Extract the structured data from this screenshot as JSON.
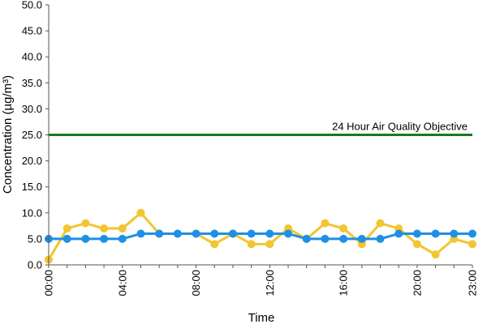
{
  "chart_data": {
    "type": "line",
    "xlabel": "Time",
    "ylabel": "Concentration (µg/m³)",
    "ylim": [
      0,
      50
    ],
    "y_tick_step": 5,
    "y_tick_decimals": 1,
    "grid": false,
    "x": [
      "00:00",
      "01:00",
      "02:00",
      "03:00",
      "04:00",
      "05:00",
      "06:00",
      "07:00",
      "08:00",
      "09:00",
      "10:00",
      "11:00",
      "12:00",
      "13:00",
      "14:00",
      "15:00",
      "16:00",
      "17:00",
      "18:00",
      "19:00",
      "20:00",
      "21:00",
      "22:00",
      "23:00"
    ],
    "x_tick_labels": [
      "00:00",
      "04:00",
      "08:00",
      "12:00",
      "16:00",
      "20:00",
      "23:00"
    ],
    "reference_line": {
      "label": "24 Hour Air Quality Objective",
      "value": 25,
      "color": "#1a7a1a"
    },
    "series": [
      {
        "color": "#f2c531",
        "values": [
          1,
          7,
          8,
          7,
          7,
          10,
          6,
          6,
          6,
          4,
          6,
          4,
          4,
          7,
          5,
          8,
          7,
          4,
          8,
          7,
          4,
          2,
          5,
          4
        ]
      },
      {
        "color": "#1e90e6",
        "values": [
          5,
          5,
          5,
          5,
          5,
          6,
          6,
          6,
          6,
          6,
          6,
          6,
          6,
          6,
          5,
          5,
          5,
          5,
          5,
          6,
          6,
          6,
          6,
          6
        ]
      }
    ]
  }
}
